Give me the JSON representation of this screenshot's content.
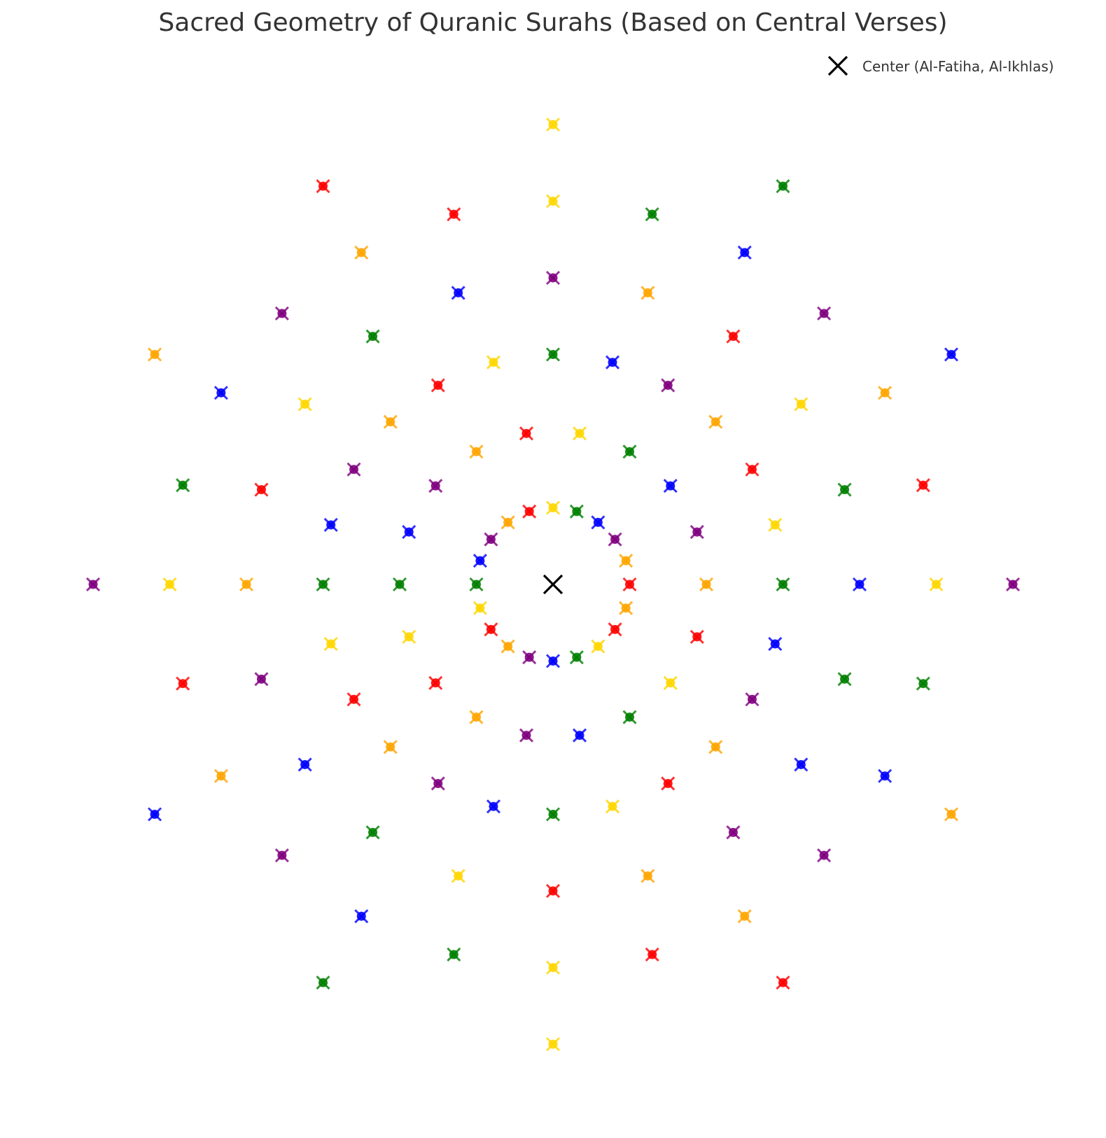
{
  "chart_data": {
    "type": "scatter",
    "title": "Sacred Geometry of Quranic Surahs (Based on Central Verses)",
    "xlabel": "",
    "ylabel": "",
    "xlim": [
      -6.6,
      6.6
    ],
    "ylim": [
      -6.8,
      6.3
    ],
    "axes_visible": false,
    "grid": false,
    "legend_placement": "top-right",
    "legend": [
      {
        "label": "Center (Al-Fatiha, Al-Ikhlas)",
        "marker": "x",
        "color": "#000000"
      }
    ],
    "center": {
      "x": 0,
      "y": 0
    },
    "marker_colors": {
      "red": "#ff0000",
      "orange": "#ffa500",
      "purple": "#800080",
      "blue": "#0000ff",
      "green": "#008000",
      "gold": "#ffd700"
    },
    "color_cycle": [
      "red",
      "orange",
      "purple",
      "blue",
      "green",
      "gold"
    ],
    "ring_color_start": [
      "red",
      "orange",
      "green",
      "blue",
      "gold",
      "purple"
    ],
    "rings": [
      {
        "radius": 1.0,
        "count": 20
      },
      {
        "radius": 2.0,
        "count": 18
      },
      {
        "radius": 3.0,
        "count": 24
      },
      {
        "radius": 4.0,
        "count": 20
      },
      {
        "radius": 5.0,
        "count": 24
      },
      {
        "radius": 6.0,
        "count": 12
      }
    ],
    "point_style": {
      "marker": "o with x overlay",
      "note": "each point drawn as filled dot with x-marker of same color"
    }
  }
}
